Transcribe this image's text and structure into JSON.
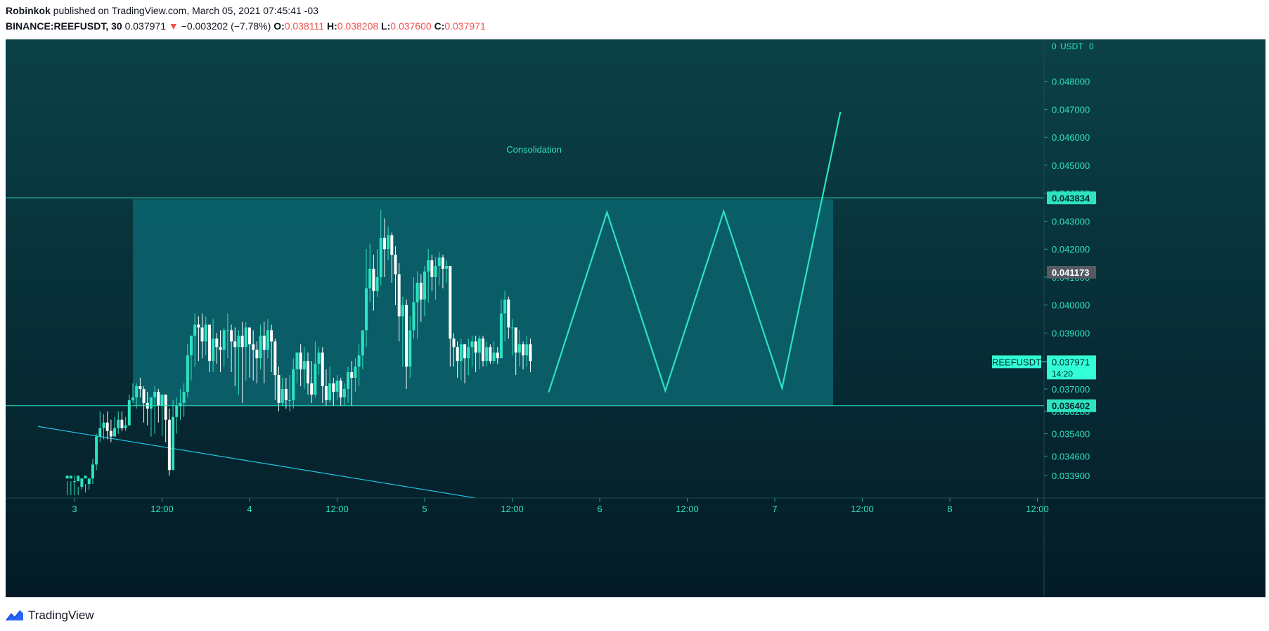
{
  "header": {
    "author": "Robinkok",
    "published_text": "published on TradingView.com, March 05, 2021 07:45:41 -03",
    "symbol": "BINANCE:REEFUSDT, 30",
    "last_price": "0.037971",
    "change_arrow": "▼",
    "change_text": "−0.003202 (−7.78%)",
    "open_label": "O:",
    "open_value": "0.038111",
    "high_label": "H:",
    "high_value": "0.038208",
    "low_label": "L:",
    "low_value": "0.037600",
    "close_label": "C:",
    "close_value": "0.037971"
  },
  "footer": {
    "brand": "TradingView",
    "logo_icon": "tradingview-logo-icon"
  },
  "colors": {
    "accent": "#2de3c0",
    "candle_up": "#2de3c0",
    "candle_down": "#ffffff",
    "box_fill": "#0a6570",
    "bg_top": "#0b4147",
    "bg_bottom": "#041b27",
    "down_arrow": "#ef5350",
    "current_price_label": "#33ffd6",
    "marker_label": "#555a63"
  },
  "chart_data": {
    "type": "candlestick",
    "symbol": "REEFUSDT",
    "timeframe": "30",
    "currency": "USDT",
    "ylim": [
      0.0331,
      0.0495
    ],
    "y_ticks": [
      {
        "value": 0.0339,
        "label": "0.033900"
      },
      {
        "value": 0.0346,
        "label": "0.034600"
      },
      {
        "value": 0.0354,
        "label": "0.035400"
      },
      {
        "value": 0.0362,
        "label": "0.036200"
      },
      {
        "value": 0.037,
        "label": "0.037000"
      },
      {
        "value": 0.039,
        "label": "0.039000"
      },
      {
        "value": 0.04,
        "label": "0.040000"
      },
      {
        "value": 0.041,
        "label": "0.041000"
      },
      {
        "value": 0.042,
        "label": "0.042000"
      },
      {
        "value": 0.043,
        "label": "0.043000"
      },
      {
        "value": 0.044,
        "label": "0.044000"
      },
      {
        "value": 0.045,
        "label": "0.045000"
      },
      {
        "value": 0.046,
        "label": "0.046000"
      },
      {
        "value": 0.047,
        "label": "0.047000"
      },
      {
        "value": 0.048,
        "label": "0.048000"
      }
    ],
    "axis_unit_label": "USDT",
    "x_ticks": [
      {
        "t": 0,
        "label": "3"
      },
      {
        "t": 12,
        "label": "12:00"
      },
      {
        "t": 24,
        "label": "4"
      },
      {
        "t": 36,
        "label": "12:00"
      },
      {
        "t": 48,
        "label": "5"
      },
      {
        "t": 60,
        "label": "12:00"
      },
      {
        "t": 72,
        "label": "6"
      },
      {
        "t": 84,
        "label": "12:00"
      },
      {
        "t": 96,
        "label": "7"
      },
      {
        "t": 108,
        "label": "12:00"
      },
      {
        "t": 120,
        "label": "8"
      },
      {
        "t": 132,
        "label": "12:00"
      }
    ],
    "candles": [
      [
        -1,
        0.0338,
        0.0339,
        0.0337,
        0.0332
      ],
      [
        -0.5,
        0.0338,
        0.0339,
        0.0337,
        0.0332
      ],
      [
        0,
        0.0337,
        0.0337,
        0.0339,
        0.0332
      ],
      [
        0.5,
        0.0337,
        0.0339,
        0.0335,
        0.0332
      ],
      [
        1,
        0.0335,
        0.0338,
        0.0338,
        0.0334
      ],
      [
        1.5,
        0.0338,
        0.0339,
        0.0336,
        0.0333
      ],
      [
        2,
        0.0336,
        0.0338,
        0.0338,
        0.0334
      ],
      [
        2.5,
        0.0338,
        0.0343,
        0.0345,
        0.0336
      ],
      [
        3,
        0.0343,
        0.0353,
        0.0354,
        0.0341
      ],
      [
        3.5,
        0.0353,
        0.0356,
        0.0362,
        0.0351
      ],
      [
        4,
        0.0356,
        0.0358,
        0.0361,
        0.0352
      ],
      [
        4.5,
        0.0358,
        0.0355,
        0.0362,
        0.0352
      ],
      [
        5,
        0.0355,
        0.0353,
        0.0359,
        0.0351
      ],
      [
        5.5,
        0.0353,
        0.0356,
        0.036,
        0.0353
      ],
      [
        6,
        0.0356,
        0.0359,
        0.0362,
        0.0354
      ],
      [
        6.5,
        0.0359,
        0.0356,
        0.0362,
        0.0355
      ],
      [
        7,
        0.0356,
        0.0357,
        0.036,
        0.0355
      ],
      [
        7.5,
        0.0357,
        0.0366,
        0.0368,
        0.0357
      ],
      [
        8,
        0.0366,
        0.0367,
        0.0372,
        0.0365
      ],
      [
        8.5,
        0.0367,
        0.0371,
        0.0372,
        0.0363
      ],
      [
        9,
        0.0371,
        0.037,
        0.0374,
        0.0367
      ],
      [
        9.5,
        0.037,
        0.0365,
        0.0371,
        0.0358
      ],
      [
        10,
        0.0365,
        0.0363,
        0.0369,
        0.0357
      ],
      [
        10.5,
        0.0363,
        0.0367,
        0.0367,
        0.0353
      ],
      [
        11,
        0.0367,
        0.0369,
        0.0371,
        0.0354
      ],
      [
        11.5,
        0.0369,
        0.0364,
        0.037,
        0.0358
      ],
      [
        12,
        0.0364,
        0.0368,
        0.0368,
        0.0353
      ],
      [
        12.5,
        0.0368,
        0.0359,
        0.0367,
        0.0351
      ],
      [
        13,
        0.0359,
        0.0341,
        0.0363,
        0.0339
      ],
      [
        13.5,
        0.0341,
        0.036,
        0.0366,
        0.0341
      ],
      [
        14,
        0.036,
        0.0364,
        0.0367,
        0.0354
      ],
      [
        14.5,
        0.0364,
        0.0365,
        0.037,
        0.0359
      ],
      [
        15,
        0.0365,
        0.0369,
        0.0372,
        0.036
      ],
      [
        15.5,
        0.0369,
        0.0382,
        0.0386,
        0.0367
      ],
      [
        16,
        0.0382,
        0.0389,
        0.0389,
        0.0373
      ],
      [
        16.5,
        0.0389,
        0.0393,
        0.0397,
        0.0378
      ],
      [
        17,
        0.0393,
        0.0392,
        0.0396,
        0.038
      ],
      [
        17.5,
        0.0392,
        0.0387,
        0.0397,
        0.0381
      ],
      [
        18,
        0.0387,
        0.0393,
        0.0396,
        0.0382
      ],
      [
        18.5,
        0.0393,
        0.038,
        0.0393,
        0.0376
      ],
      [
        19,
        0.038,
        0.0388,
        0.0395,
        0.0376
      ],
      [
        19.5,
        0.0388,
        0.0385,
        0.039,
        0.0379
      ],
      [
        20,
        0.0385,
        0.0384,
        0.0391,
        0.0376
      ],
      [
        20.5,
        0.0384,
        0.0391,
        0.0392,
        0.0378
      ],
      [
        21,
        0.0391,
        0.0391,
        0.0397,
        0.0381
      ],
      [
        21.5,
        0.0391,
        0.0387,
        0.0393,
        0.0376
      ],
      [
        22,
        0.0387,
        0.0385,
        0.0392,
        0.0371
      ],
      [
        22.5,
        0.0385,
        0.0389,
        0.0391,
        0.0368
      ],
      [
        23,
        0.0389,
        0.0385,
        0.0394,
        0.0365
      ],
      [
        23.5,
        0.0385,
        0.0392,
        0.0394,
        0.0373
      ],
      [
        24,
        0.0392,
        0.0386,
        0.0392,
        0.0374
      ],
      [
        24.5,
        0.0386,
        0.0384,
        0.0391,
        0.0373
      ],
      [
        25,
        0.0384,
        0.0381,
        0.0387,
        0.0372
      ],
      [
        25.5,
        0.0381,
        0.0389,
        0.0393,
        0.0377
      ],
      [
        26,
        0.0389,
        0.0384,
        0.0394,
        0.0372
      ],
      [
        26.5,
        0.0384,
        0.0391,
        0.0395,
        0.0381
      ],
      [
        27,
        0.0391,
        0.0387,
        0.0393,
        0.0376
      ],
      [
        27.5,
        0.0387,
        0.0375,
        0.0388,
        0.0366
      ],
      [
        28,
        0.0375,
        0.0365,
        0.0378,
        0.0362
      ],
      [
        28.5,
        0.0365,
        0.037,
        0.0374,
        0.0364
      ],
      [
        29,
        0.037,
        0.0366,
        0.0374,
        0.0363
      ],
      [
        29.5,
        0.0366,
        0.0366,
        0.0375,
        0.0362
      ],
      [
        30,
        0.0366,
        0.0377,
        0.0381,
        0.0363
      ],
      [
        30.5,
        0.0377,
        0.0383,
        0.0383,
        0.0372
      ],
      [
        31,
        0.0383,
        0.0377,
        0.0386,
        0.0371
      ],
      [
        31.5,
        0.0377,
        0.038,
        0.0385,
        0.037
      ],
      [
        32,
        0.038,
        0.0372,
        0.0383,
        0.0368
      ],
      [
        32.5,
        0.0372,
        0.0368,
        0.038,
        0.0365
      ],
      [
        33,
        0.0368,
        0.0379,
        0.0387,
        0.0367
      ],
      [
        33.5,
        0.0379,
        0.0383,
        0.0385,
        0.0375
      ],
      [
        34,
        0.0383,
        0.0371,
        0.0385,
        0.0365
      ],
      [
        34.5,
        0.0371,
        0.0366,
        0.0377,
        0.0364
      ],
      [
        35,
        0.0366,
        0.0372,
        0.0378,
        0.0365
      ],
      [
        35.5,
        0.0372,
        0.0369,
        0.0374,
        0.0364
      ],
      [
        36,
        0.0369,
        0.0373,
        0.0375,
        0.0366
      ],
      [
        36.5,
        0.0373,
        0.0367,
        0.0374,
        0.0364
      ],
      [
        37,
        0.0367,
        0.037,
        0.0372,
        0.0364
      ],
      [
        37.5,
        0.037,
        0.0376,
        0.0378,
        0.0365
      ],
      [
        38,
        0.0376,
        0.0374,
        0.038,
        0.0364
      ],
      [
        38.5,
        0.0374,
        0.0378,
        0.0381,
        0.0369
      ],
      [
        39,
        0.0378,
        0.0382,
        0.0386,
        0.0371
      ],
      [
        39.5,
        0.0382,
        0.0391,
        0.0391,
        0.0377
      ],
      [
        40,
        0.0391,
        0.0406,
        0.042,
        0.0385
      ],
      [
        40.5,
        0.0406,
        0.0413,
        0.0422,
        0.0401
      ],
      [
        41,
        0.0413,
        0.0405,
        0.0418,
        0.0398
      ],
      [
        41.5,
        0.0405,
        0.041,
        0.042,
        0.0403
      ],
      [
        42,
        0.041,
        0.0424,
        0.0434,
        0.0407
      ],
      [
        42.5,
        0.0424,
        0.042,
        0.0431,
        0.041
      ],
      [
        43,
        0.042,
        0.0425,
        0.0428,
        0.0416
      ],
      [
        43.5,
        0.0425,
        0.0418,
        0.0426,
        0.0408
      ],
      [
        44,
        0.0418,
        0.0411,
        0.0421,
        0.04
      ],
      [
        44.5,
        0.0411,
        0.0396,
        0.0415,
        0.0387
      ],
      [
        45,
        0.0396,
        0.04,
        0.0403,
        0.0378
      ],
      [
        45.5,
        0.04,
        0.0378,
        0.0402,
        0.037
      ],
      [
        46,
        0.0378,
        0.0391,
        0.0396,
        0.0374
      ],
      [
        46.5,
        0.0391,
        0.0401,
        0.041,
        0.0388
      ],
      [
        47,
        0.0401,
        0.0408,
        0.0412,
        0.0388
      ],
      [
        47.5,
        0.0408,
        0.0402,
        0.0411,
        0.0394
      ],
      [
        48,
        0.0402,
        0.0412,
        0.0414,
        0.0396
      ],
      [
        48.5,
        0.0412,
        0.0416,
        0.042,
        0.0401
      ],
      [
        49,
        0.0416,
        0.041,
        0.0418,
        0.0405
      ],
      [
        49.5,
        0.041,
        0.0414,
        0.0417,
        0.0402
      ],
      [
        50,
        0.0414,
        0.0417,
        0.0419,
        0.0407
      ],
      [
        50.5,
        0.0417,
        0.0413,
        0.0418,
        0.0406
      ],
      [
        51,
        0.0413,
        0.0414,
        0.0416,
        0.0408
      ],
      [
        51.5,
        0.0414,
        0.0388,
        0.0414,
        0.0378
      ],
      [
        52,
        0.0388,
        0.0385,
        0.039,
        0.0378
      ],
      [
        52.5,
        0.0385,
        0.038,
        0.0387,
        0.0374
      ],
      [
        53,
        0.038,
        0.0386,
        0.0388,
        0.0373
      ],
      [
        53.5,
        0.0386,
        0.0381,
        0.0386,
        0.0372
      ],
      [
        54,
        0.0381,
        0.0385,
        0.0388,
        0.0375
      ],
      [
        54.5,
        0.0385,
        0.0387,
        0.0389,
        0.0378
      ],
      [
        55,
        0.0387,
        0.0383,
        0.0389,
        0.0376
      ],
      [
        55.5,
        0.0383,
        0.0388,
        0.0389,
        0.0377
      ],
      [
        56,
        0.0388,
        0.038,
        0.0389,
        0.0378
      ],
      [
        56.5,
        0.038,
        0.0385,
        0.0387,
        0.0378
      ],
      [
        57,
        0.0385,
        0.038,
        0.0386,
        0.0379
      ],
      [
        57.5,
        0.038,
        0.0383,
        0.0387,
        0.0379
      ],
      [
        58,
        0.0383,
        0.0381,
        0.0385,
        0.0379
      ],
      [
        58.5,
        0.0381,
        0.0397,
        0.0402,
        0.0382
      ],
      [
        59,
        0.0397,
        0.0402,
        0.0405,
        0.0387
      ],
      [
        59.5,
        0.0402,
        0.0392,
        0.0403,
        0.0388
      ],
      [
        60,
        0.0392,
        0.0392,
        0.0395,
        0.0382
      ],
      [
        60.5,
        0.0392,
        0.0383,
        0.0392,
        0.0375
      ],
      [
        61,
        0.0383,
        0.0386,
        0.0391,
        0.0378
      ],
      [
        61.5,
        0.0386,
        0.0382,
        0.0387,
        0.0377
      ],
      [
        62,
        0.0382,
        0.0386,
        0.0389,
        0.0378
      ],
      [
        62.5,
        0.0386,
        0.038,
        0.0388,
        0.0376
      ]
    ],
    "price_lines": [
      {
        "value": 0.043834,
        "label": "0.043834"
      },
      {
        "value": 0.036402,
        "label": "0.036402"
      }
    ],
    "marker_label": {
      "value": 0.041173,
      "label": "0.041173"
    },
    "current_price": {
      "symbol": "REEFUSDT",
      "value": 0.037971,
      "label": "0.037971",
      "countdown": "14:20"
    },
    "consolidation_box": {
      "t_start": 8,
      "t_end": 104,
      "y_top": 0.04378,
      "y_bottom": 0.03641
    },
    "projected_path": [
      {
        "t": 65,
        "y": 0.03688
      },
      {
        "t": 73,
        "y": 0.04332
      },
      {
        "t": 81,
        "y": 0.03694
      },
      {
        "t": 89,
        "y": 0.04335
      },
      {
        "t": 97,
        "y": 0.03703
      },
      {
        "t": 105,
        "y": 0.04691
      }
    ],
    "trendline": [
      {
        "t": -5,
        "y": 0.03566
      },
      {
        "t": 55,
        "y": 0.0331
      }
    ],
    "annotations": [
      {
        "text": "Consolidation",
        "t": 63,
        "y": 0.04545
      }
    ]
  }
}
